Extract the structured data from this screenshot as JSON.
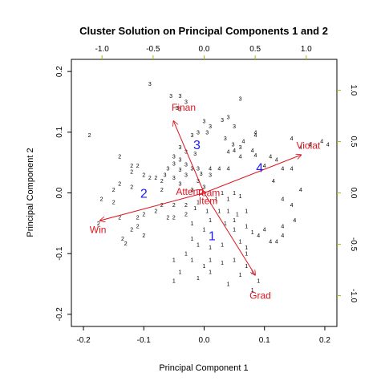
{
  "chart_data": {
    "type": "scatter",
    "title": "Cluster Solution on Principal Components 1 and 2",
    "xlabel": "Principal Component 1",
    "ylabel": "Principal Component 2",
    "xlim": [
      -0.22,
      0.22
    ],
    "ylim": [
      -0.22,
      0.22
    ],
    "x_ticks": [
      "-0.2",
      "-0.1",
      "0.0",
      "0.1",
      "0.2"
    ],
    "y_ticks": [
      "-0.2",
      "-0.1",
      "0.0",
      "0.1",
      "0.2"
    ],
    "secondary_xlim": [
      -1.3,
      1.3
    ],
    "secondary_ylim": [
      -1.3,
      1.3
    ],
    "secondary_x_ticks": [
      "-1.0",
      "-0.5",
      "0.0",
      "0.5",
      "1.0"
    ],
    "secondary_y_ticks": [
      "-1.0",
      "-0.5",
      "0.0",
      "0.5",
      "1.0"
    ],
    "grid": false,
    "colors": {
      "points": "#000000",
      "centroids": "#1a1aff",
      "vectors": "#e0141e",
      "secondary_axes": "#b3b300"
    },
    "centroids": [
      {
        "label": "1",
        "x": 0.013,
        "y": -0.07
      },
      {
        "label": "2",
        "x": -0.1,
        "y": 0.0
      },
      {
        "label": "3",
        "x": -0.012,
        "y": 0.08
      },
      {
        "label": "4",
        "x": 0.092,
        "y": 0.042
      }
    ],
    "vectors": [
      {
        "label": "Finan",
        "x": -0.3,
        "y": 0.7,
        "label_x": -0.2,
        "label_y": 0.83
      },
      {
        "label": "Violat",
        "x": 0.95,
        "y": 0.37,
        "label_x": 1.02,
        "label_y": 0.46
      },
      {
        "label": "Win",
        "x": -1.02,
        "y": -0.27,
        "label_x": -1.04,
        "label_y": -0.36
      },
      {
        "label": "Grad",
        "x": 0.5,
        "y": -0.8,
        "label_x": 0.55,
        "label_y": -1.0
      },
      {
        "label": "Attend",
        "x": -0.04,
        "y": 0.01,
        "label_x": -0.14,
        "label_y": 0.01
      },
      {
        "label": "Team",
        "x": 0.03,
        "y": 0.0,
        "label_x": 0.04,
        "label_y": 0.0
      },
      {
        "label": "Item",
        "x": 0.02,
        "y": -0.02,
        "label_x": 0.04,
        "label_y": -0.08
      }
    ],
    "points": [
      {
        "label": "3",
        "x": -0.09,
        "y": 0.18
      },
      {
        "label": "3",
        "x": -0.04,
        "y": 0.16
      },
      {
        "label": "3",
        "x": -0.055,
        "y": 0.16
      },
      {
        "label": "3",
        "x": -0.045,
        "y": 0.14
      },
      {
        "label": "3",
        "x": -0.04,
        "y": 0.138
      },
      {
        "label": "3",
        "x": -0.03,
        "y": 0.15
      },
      {
        "label": "3",
        "x": 0.06,
        "y": 0.155
      },
      {
        "label": "3",
        "x": 0.04,
        "y": 0.125
      },
      {
        "label": "3",
        "x": 0.03,
        "y": 0.12
      },
      {
        "label": "3",
        "x": 0.0,
        "y": 0.118
      },
      {
        "label": "3",
        "x": 0.05,
        "y": 0.11
      },
      {
        "label": "3",
        "x": 0.01,
        "y": 0.11
      },
      {
        "label": "3",
        "x": 0.005,
        "y": 0.1
      },
      {
        "label": "3",
        "x": -0.01,
        "y": 0.1
      },
      {
        "label": "3",
        "x": -0.02,
        "y": 0.095
      },
      {
        "label": "3",
        "x": 0.035,
        "y": 0.09
      },
      {
        "label": "3",
        "x": 0.048,
        "y": 0.08
      },
      {
        "label": "3",
        "x": 0.06,
        "y": 0.075
      },
      {
        "label": "3",
        "x": -0.04,
        "y": 0.075
      },
      {
        "label": "3",
        "x": -0.03,
        "y": 0.068
      },
      {
        "label": "3",
        "x": -0.015,
        "y": 0.065
      },
      {
        "label": "3",
        "x": -0.05,
        "y": 0.06
      },
      {
        "label": "3",
        "x": -0.04,
        "y": 0.055
      },
      {
        "label": "3",
        "x": -0.05,
        "y": 0.048
      },
      {
        "label": "3",
        "x": -0.03,
        "y": 0.047
      },
      {
        "label": "3",
        "x": -0.06,
        "y": 0.04
      },
      {
        "label": "3",
        "x": -0.02,
        "y": 0.04
      },
      {
        "label": "3",
        "x": -0.04,
        "y": 0.038
      },
      {
        "label": "3",
        "x": -0.065,
        "y": 0.03
      },
      {
        "label": "3",
        "x": -0.05,
        "y": 0.025
      },
      {
        "label": "3",
        "x": -0.03,
        "y": 0.03
      },
      {
        "label": "3",
        "x": -0.01,
        "y": 0.04
      },
      {
        "label": "3",
        "x": -0.005,
        "y": 0.032
      },
      {
        "label": "3",
        "x": -0.04,
        "y": 0.015
      },
      {
        "label": "3",
        "x": -0.01,
        "y": 0.02
      },
      {
        "label": "3",
        "x": 0.01,
        "y": 0.03
      },
      {
        "label": "3",
        "x": 0.0,
        "y": 0.01
      },
      {
        "label": "3",
        "x": -0.02,
        "y": 0.005
      },
      {
        "label": "4",
        "x": 0.085,
        "y": 0.1
      },
      {
        "label": "4",
        "x": 0.085,
        "y": 0.095
      },
      {
        "label": "4",
        "x": 0.065,
        "y": 0.085
      },
      {
        "label": "4",
        "x": 0.08,
        "y": 0.07
      },
      {
        "label": "4",
        "x": 0.05,
        "y": 0.07
      },
      {
        "label": "4",
        "x": 0.04,
        "y": 0.068
      },
      {
        "label": "4",
        "x": 0.06,
        "y": 0.06
      },
      {
        "label": "4",
        "x": 0.085,
        "y": 0.062
      },
      {
        "label": "4",
        "x": 0.11,
        "y": 0.06
      },
      {
        "label": "4",
        "x": 0.12,
        "y": 0.055
      },
      {
        "label": "4",
        "x": 0.145,
        "y": 0.09
      },
      {
        "label": "4",
        "x": 0.16,
        "y": 0.075
      },
      {
        "label": "4",
        "x": 0.175,
        "y": 0.08
      },
      {
        "label": "4",
        "x": 0.195,
        "y": 0.085
      },
      {
        "label": "4",
        "x": 0.205,
        "y": 0.08
      },
      {
        "label": "4",
        "x": 0.1,
        "y": 0.045
      },
      {
        "label": "4",
        "x": 0.04,
        "y": 0.04
      },
      {
        "label": "4",
        "x": 0.025,
        "y": 0.04
      },
      {
        "label": "4",
        "x": 0.01,
        "y": 0.04
      },
      {
        "label": "4",
        "x": 0.13,
        "y": 0.04
      },
      {
        "label": "4",
        "x": 0.145,
        "y": 0.04
      },
      {
        "label": "4",
        "x": 0.115,
        "y": 0.02
      },
      {
        "label": "4",
        "x": 0.16,
        "y": 0.005
      },
      {
        "label": "4",
        "x": 0.13,
        "y": -0.01
      },
      {
        "label": "4",
        "x": 0.145,
        "y": -0.02
      },
      {
        "label": "4",
        "x": 0.15,
        "y": -0.045
      },
      {
        "label": "4",
        "x": 0.13,
        "y": -0.055
      },
      {
        "label": "4",
        "x": 0.13,
        "y": -0.07
      },
      {
        "label": "4",
        "x": 0.1,
        "y": -0.06
      },
      {
        "label": "4",
        "x": 0.09,
        "y": -0.07
      },
      {
        "label": "4",
        "x": 0.11,
        "y": -0.08
      },
      {
        "label": "4",
        "x": 0.12,
        "y": -0.08
      },
      {
        "label": "2",
        "x": -0.19,
        "y": 0.095
      },
      {
        "label": "2",
        "x": -0.14,
        "y": 0.06
      },
      {
        "label": "2",
        "x": -0.12,
        "y": 0.045
      },
      {
        "label": "2",
        "x": -0.11,
        "y": 0.045
      },
      {
        "label": "2",
        "x": -0.12,
        "y": 0.035
      },
      {
        "label": "2",
        "x": -0.1,
        "y": 0.03
      },
      {
        "label": "2",
        "x": -0.09,
        "y": 0.025
      },
      {
        "label": "2",
        "x": -0.14,
        "y": 0.015
      },
      {
        "label": "2",
        "x": -0.15,
        "y": 0.005
      },
      {
        "label": "2",
        "x": -0.12,
        "y": 0.01
      },
      {
        "label": "2",
        "x": -0.08,
        "y": 0.025
      },
      {
        "label": "2",
        "x": -0.07,
        "y": 0.02
      },
      {
        "label": "2",
        "x": -0.07,
        "y": 0.005
      },
      {
        "label": "2",
        "x": -0.17,
        "y": -0.01
      },
      {
        "label": "2",
        "x": -0.15,
        "y": -0.015
      },
      {
        "label": "2",
        "x": -0.14,
        "y": -0.04
      },
      {
        "label": "2",
        "x": -0.11,
        "y": -0.04
      },
      {
        "label": "2",
        "x": -0.1,
        "y": -0.035
      },
      {
        "label": "2",
        "x": -0.08,
        "y": -0.03
      },
      {
        "label": "2",
        "x": -0.07,
        "y": -0.02
      },
      {
        "label": "2",
        "x": -0.05,
        "y": -0.02
      },
      {
        "label": "2",
        "x": -0.03,
        "y": -0.02
      },
      {
        "label": "2",
        "x": -0.03,
        "y": -0.035
      },
      {
        "label": "2",
        "x": -0.06,
        "y": -0.04
      },
      {
        "label": "2",
        "x": -0.05,
        "y": -0.04
      },
      {
        "label": "2",
        "x": -0.11,
        "y": -0.055
      },
      {
        "label": "2",
        "x": -0.12,
        "y": -0.06
      },
      {
        "label": "2",
        "x": -0.1,
        "y": -0.07
      },
      {
        "label": "2",
        "x": -0.135,
        "y": -0.075
      },
      {
        "label": "2",
        "x": -0.13,
        "y": -0.083
      },
      {
        "label": "2",
        "x": -0.175,
        "y": -0.05
      },
      {
        "label": "1",
        "x": 0.03,
        "y": 0.0
      },
      {
        "label": "1",
        "x": 0.04,
        "y": -0.01
      },
      {
        "label": "1",
        "x": 0.05,
        "y": 0.0
      },
      {
        "label": "1",
        "x": 0.06,
        "y": -0.005
      },
      {
        "label": "1",
        "x": 0.02,
        "y": -0.01
      },
      {
        "label": "1",
        "x": -0.01,
        "y": -0.015
      },
      {
        "label": "1",
        "x": -0.015,
        "y": -0.025
      },
      {
        "label": "1",
        "x": 0.005,
        "y": -0.03
      },
      {
        "label": "1",
        "x": 0.025,
        "y": -0.03
      },
      {
        "label": "1",
        "x": 0.04,
        "y": -0.03
      },
      {
        "label": "1",
        "x": 0.055,
        "y": -0.035
      },
      {
        "label": "1",
        "x": 0.07,
        "y": -0.03
      },
      {
        "label": "1",
        "x": 0.01,
        "y": -0.045
      },
      {
        "label": "1",
        "x": 0.035,
        "y": -0.05
      },
      {
        "label": "1",
        "x": 0.05,
        "y": -0.045
      },
      {
        "label": "1",
        "x": -0.02,
        "y": -0.05
      },
      {
        "label": "1",
        "x": 0.0,
        "y": -0.06
      },
      {
        "label": "1",
        "x": 0.05,
        "y": -0.06
      },
      {
        "label": "1",
        "x": 0.07,
        "y": -0.055
      },
      {
        "label": "1",
        "x": 0.08,
        "y": -0.065
      },
      {
        "label": "1",
        "x": -0.02,
        "y": -0.075
      },
      {
        "label": "1",
        "x": -0.01,
        "y": -0.085
      },
      {
        "label": "1",
        "x": 0.01,
        "y": -0.09
      },
      {
        "label": "1",
        "x": 0.03,
        "y": -0.085
      },
      {
        "label": "1",
        "x": 0.06,
        "y": -0.08
      },
      {
        "label": "1",
        "x": 0.07,
        "y": -0.09
      },
      {
        "label": "1",
        "x": -0.03,
        "y": -0.1
      },
      {
        "label": "1",
        "x": -0.05,
        "y": -0.11
      },
      {
        "label": "1",
        "x": -0.02,
        "y": -0.11
      },
      {
        "label": "1",
        "x": 0.01,
        "y": -0.11
      },
      {
        "label": "1",
        "x": 0.03,
        "y": -0.115
      },
      {
        "label": "1",
        "x": 0.05,
        "y": -0.11
      },
      {
        "label": "1",
        "x": 0.07,
        "y": -0.12
      },
      {
        "label": "1",
        "x": -0.04,
        "y": -0.13
      },
      {
        "label": "1",
        "x": 0.01,
        "y": -0.13
      },
      {
        "label": "1",
        "x": 0.06,
        "y": -0.135
      },
      {
        "label": "1",
        "x": 0.08,
        "y": -0.13
      },
      {
        "label": "1",
        "x": -0.05,
        "y": -0.145
      },
      {
        "label": "1",
        "x": -0.01,
        "y": -0.14
      },
      {
        "label": "1",
        "x": 0.04,
        "y": -0.15
      },
      {
        "label": "1",
        "x": 0.09,
        "y": -0.145
      },
      {
        "label": "1",
        "x": 0.08,
        "y": -0.16
      },
      {
        "label": "1",
        "x": 0.07,
        "y": -0.1
      },
      {
        "label": "1",
        "x": 0.0,
        "y": -0.12
      }
    ]
  }
}
